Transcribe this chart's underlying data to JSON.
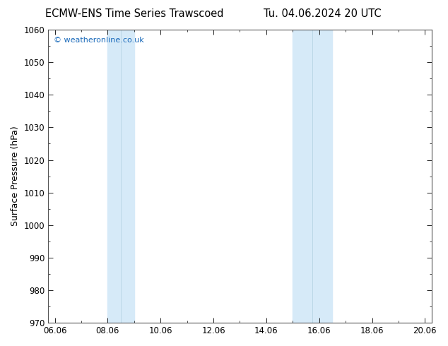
{
  "title_left": "ECMW-ENS Time Series Trawscoed",
  "title_right": "Tu. 04.06.2024 20 UTC",
  "ylabel": "Surface Pressure (hPa)",
  "ylim": [
    970,
    1060
  ],
  "yticks": [
    970,
    980,
    990,
    1000,
    1010,
    1020,
    1030,
    1040,
    1050,
    1060
  ],
  "xlim": [
    5.75,
    20.25
  ],
  "xtick_positions": [
    6,
    8,
    10,
    12,
    14,
    16,
    18,
    20
  ],
  "xtick_labels": [
    "06.06",
    "08.06",
    "10.06",
    "12.06",
    "14.06",
    "16.06",
    "18.06",
    "20.06"
  ],
  "shaded_bands": [
    {
      "x_start": 8.0,
      "x_end": 8.5
    },
    {
      "x_start": 8.5,
      "x_end": 9.5
    },
    {
      "x_start": 15.0,
      "x_end": 15.5
    },
    {
      "x_start": 15.5,
      "x_end": 16.5
    }
  ],
  "band_colors": [
    "#cce5f5",
    "#daeef8",
    "#cce5f5",
    "#daeef8"
  ],
  "band_color": "#d6eaf8",
  "background_color": "#ffffff",
  "plot_bg_color": "#ffffff",
  "watermark_text": "© weatheronline.co.uk",
  "watermark_color": "#1a6aba",
  "watermark_fontsize": 8,
  "title_fontsize": 10.5,
  "axis_label_fontsize": 9,
  "tick_fontsize": 8.5,
  "spine_color": "#555555"
}
